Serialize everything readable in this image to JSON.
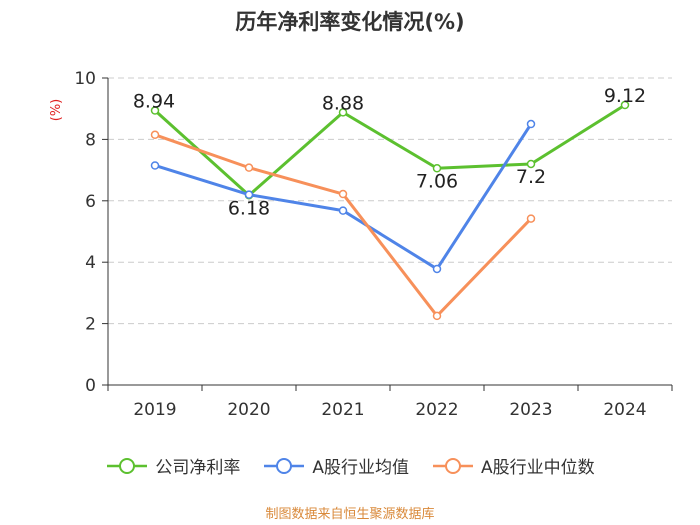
{
  "chart_data": {
    "type": "line",
    "title": "历年净利率变化情况(%)",
    "ylabel": "(%)",
    "xlabel": "",
    "categories": [
      "2019",
      "2020",
      "2021",
      "2022",
      "2023",
      "2024"
    ],
    "ylim": [
      0,
      10
    ],
    "yticks": [
      0,
      2,
      4,
      6,
      8,
      10
    ],
    "grid": true,
    "legend_position": "bottom",
    "series": [
      {
        "name": "公司净利率",
        "color": "#5cc02f",
        "values": [
          8.94,
          6.18,
          8.88,
          7.06,
          7.2,
          9.12
        ],
        "labels": [
          "8.94",
          "6.18",
          "8.88",
          "7.06",
          "7.2",
          "9.12"
        ]
      },
      {
        "name": "A股行业均值",
        "color": "#4f84e8",
        "values": [
          7.15,
          6.2,
          5.68,
          3.78,
          8.5,
          null
        ]
      },
      {
        "name": "A股行业中位数",
        "color": "#f7905a",
        "values": [
          8.15,
          7.08,
          6.22,
          2.25,
          5.42,
          null
        ]
      }
    ]
  },
  "source": "制图数据来自恒生聚源数据库"
}
